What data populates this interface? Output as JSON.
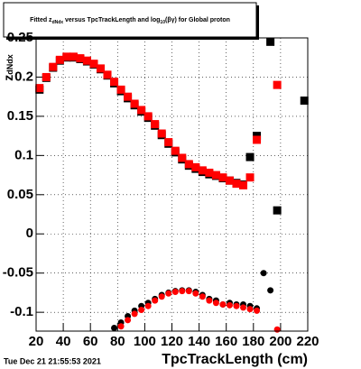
{
  "chart_data": {
    "type": "scatter",
    "title": [
      "Fitted  z",
      "dNdx",
      "  versus TpcTrackLength and log",
      "10",
      "(βγ) for Global proton"
    ],
    "y_label": [
      "z",
      "dNdx"
    ],
    "x_label": "TpcTrackLength (cm)",
    "timestamp": "Tue Dec 21 21:55:53 2021",
    "xlim": [
      20,
      220
    ],
    "ylim": [
      -0.124,
      0.25
    ],
    "xticks": [
      20,
      40,
      60,
      80,
      100,
      120,
      140,
      160,
      180,
      200,
      220
    ],
    "yticks": [
      -0.1,
      -0.05,
      0,
      0.05,
      0.1,
      0.15,
      0.2,
      0.25
    ],
    "grid": true,
    "x": [
      22.5,
      27.5,
      32.5,
      37.5,
      42.5,
      47.5,
      52.5,
      57.5,
      62.5,
      67.5,
      72.5,
      77.5,
      82.5,
      87.5,
      92.5,
      97.5,
      102.5,
      107.5,
      112.5,
      117.5,
      122.5,
      127.5,
      132.5,
      137.5,
      142.5,
      147.5,
      152.5,
      157.5,
      162.5,
      167.5,
      172.5,
      177.5,
      182.5,
      187.5,
      192.5,
      197.5,
      202.5,
      207.5,
      212.5,
      217.5
    ],
    "series": [
      {
        "color": "#000000",
        "marker": "square",
        "values": [
          0.184,
          0.199,
          0.212,
          0.221,
          0.225,
          0.225,
          0.223,
          0.22,
          0.216,
          0.21,
          0.202,
          0.192,
          0.182,
          0.173,
          0.164,
          0.156,
          0.148,
          0.138,
          0.126,
          0.115,
          0.104,
          0.095,
          0.087,
          0.083,
          0.079,
          0.076,
          0.074,
          0.071,
          0.068,
          0.065,
          0.063,
          0.098,
          0.125,
          null,
          0.245,
          0.03,
          null,
          null,
          null,
          0.17
        ]
      },
      {
        "color": "#ff0000",
        "marker": "square",
        "values": [
          0.186,
          0.2,
          0.213,
          0.222,
          0.226,
          0.226,
          0.224,
          0.221,
          0.217,
          0.211,
          0.203,
          0.194,
          0.184,
          0.175,
          0.166,
          0.158,
          0.15,
          0.14,
          0.128,
          0.117,
          0.106,
          0.097,
          0.089,
          0.085,
          0.081,
          0.078,
          0.075,
          0.072,
          0.068,
          0.064,
          0.062,
          0.072,
          0.12,
          null,
          null,
          0.19,
          null,
          null,
          null,
          null
        ]
      },
      {
        "color": "#000000",
        "marker": "circle",
        "values": [
          null,
          null,
          null,
          null,
          null,
          null,
          null,
          null,
          null,
          null,
          null,
          -0.12,
          -0.113,
          -0.105,
          -0.098,
          -0.092,
          -0.088,
          -0.083,
          -0.078,
          -0.075,
          -0.073,
          -0.072,
          -0.072,
          -0.074,
          -0.078,
          -0.083,
          -0.085,
          -0.09,
          -0.088,
          -0.09,
          -0.09,
          -0.092,
          -0.095,
          -0.05,
          -0.072,
          null,
          null,
          null,
          null,
          null
        ]
      },
      {
        "color": "#ff0000",
        "marker": "circle",
        "values": [
          null,
          null,
          null,
          null,
          null,
          null,
          null,
          null,
          null,
          null,
          null,
          null,
          -0.118,
          -0.11,
          -0.102,
          -0.097,
          -0.092,
          -0.085,
          -0.08,
          -0.076,
          -0.074,
          -0.073,
          -0.073,
          -0.076,
          -0.08,
          -0.085,
          -0.088,
          -0.09,
          -0.091,
          -0.092,
          -0.094,
          -0.096,
          -0.098,
          null,
          null,
          -0.122,
          null,
          null,
          null,
          null
        ]
      }
    ]
  }
}
